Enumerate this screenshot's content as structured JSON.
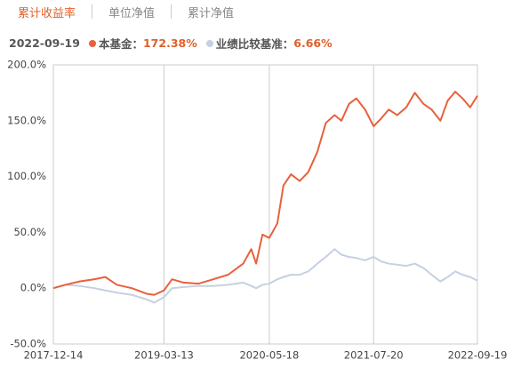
{
  "tabs": [
    "累计收益率",
    "单位净值",
    "累计净值"
  ],
  "chart_data": {
    "type": "line",
    "latest": {
      "date": "2022-09-19",
      "values": [
        172.38,
        6.66
      ],
      "value_labels": [
        "172.38%",
        "6.66%"
      ]
    },
    "x": [
      "2017-12-14",
      "2018-02-01",
      "2018-04-01",
      "2018-06-01",
      "2018-07-15",
      "2018-09-01",
      "2018-11-01",
      "2019-01-01",
      "2019-02-01",
      "2019-03-13",
      "2019-04-15",
      "2019-06-01",
      "2019-08-01",
      "2019-10-01",
      "2019-12-01",
      "2020-02-01",
      "2020-03-05",
      "2020-03-25",
      "2020-04-20",
      "2020-05-18",
      "2020-06-20",
      "2020-07-15",
      "2020-08-15",
      "2020-09-20",
      "2020-10-25",
      "2020-12-01",
      "2021-01-05",
      "2021-02-10",
      "2021-03-10",
      "2021-04-10",
      "2021-05-10",
      "2021-06-15",
      "2021-07-20",
      "2021-08-20",
      "2021-09-20",
      "2021-10-25",
      "2021-12-01",
      "2022-01-05",
      "2022-02-10",
      "2022-03-15",
      "2022-04-20",
      "2022-05-20",
      "2022-06-20",
      "2022-07-20",
      "2022-08-20",
      "2022-09-19"
    ],
    "series": [
      {
        "name": "本基金：",
        "color": "#e8603c",
        "values": [
          0,
          3,
          6,
          8,
          10,
          3,
          0,
          -5,
          -6,
          -2,
          8,
          5,
          4,
          8,
          12,
          22,
          35,
          22,
          48,
          45,
          58,
          92,
          102,
          96,
          104,
          122,
          148,
          155,
          150,
          165,
          170,
          160,
          145,
          152,
          160,
          155,
          162,
          175,
          165,
          160,
          150,
          168,
          176,
          170,
          162,
          172.38
        ]
      },
      {
        "name": "业绩比较基准：",
        "color": "#c5d0e3",
        "values": [
          0,
          3,
          2,
          0,
          -2,
          -4,
          -6,
          -10,
          -13,
          -8,
          0,
          1,
          2,
          2,
          3,
          5,
          2,
          0,
          3,
          4,
          8,
          10,
          12,
          12,
          15,
          22,
          28,
          35,
          30,
          28,
          27,
          25,
          28,
          24,
          22,
          21,
          20,
          22,
          18,
          12,
          6,
          10,
          15,
          12,
          10,
          6.66
        ]
      }
    ],
    "xlim": [
      "2017-12-14",
      "2022-09-19"
    ],
    "xticks": [
      "2017-12-14",
      "2019-03-13",
      "2020-05-18",
      "2021-07-20",
      "2022-09-19"
    ],
    "ylim": [
      -50,
      200
    ],
    "yticks": [
      {
        "value": -50,
        "label": "-50.0%"
      },
      {
        "value": 0,
        "label": "0.0%"
      },
      {
        "value": 50,
        "label": "50.0%"
      },
      {
        "value": 100,
        "label": "100.0%"
      },
      {
        "value": 150,
        "label": "150.0%"
      },
      {
        "value": 200,
        "label": "200.0%"
      }
    ],
    "grid": "x"
  }
}
